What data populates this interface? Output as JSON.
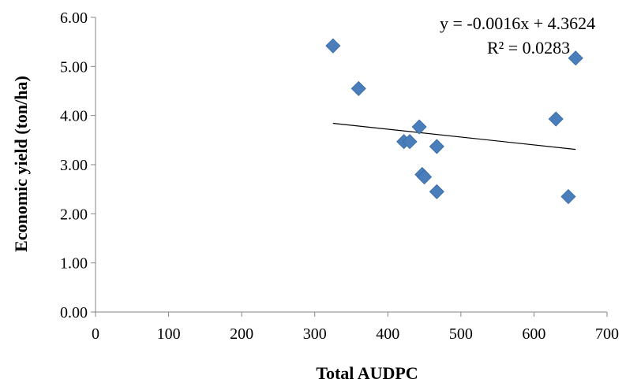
{
  "chart_data": {
    "type": "scatter",
    "xlabel": "Total AUDPC",
    "ylabel": "Economic yield (ton/ha)",
    "xlim": [
      0,
      700
    ],
    "ylim": [
      0,
      6
    ],
    "x_ticks": [
      "0",
      "100",
      "200",
      "300",
      "400",
      "500",
      "600",
      "700"
    ],
    "y_ticks": [
      "0.00",
      "1.00",
      "2.00",
      "3.00",
      "4.00",
      "5.00",
      "6.00"
    ],
    "grid": false,
    "marker": "diamond",
    "marker_color": "#4A7EBB",
    "points": [
      {
        "x": 325,
        "y": 5.42
      },
      {
        "x": 360,
        "y": 4.55
      },
      {
        "x": 443,
        "y": 3.77
      },
      {
        "x": 422,
        "y": 3.47
      },
      {
        "x": 430,
        "y": 3.47
      },
      {
        "x": 467,
        "y": 3.37
      },
      {
        "x": 447,
        "y": 2.8
      },
      {
        "x": 450,
        "y": 2.75
      },
      {
        "x": 467,
        "y": 2.45
      },
      {
        "x": 630,
        "y": 3.93
      },
      {
        "x": 657,
        "y": 5.17
      },
      {
        "x": 647,
        "y": 2.35
      }
    ],
    "trendline": {
      "type": "linear",
      "slope": -0.0016,
      "intercept": 4.3624,
      "x_range": [
        325,
        657
      ],
      "equation_label": "y = -0.0016x + 4.3624",
      "r2_label": "R² = 0.0283"
    }
  }
}
